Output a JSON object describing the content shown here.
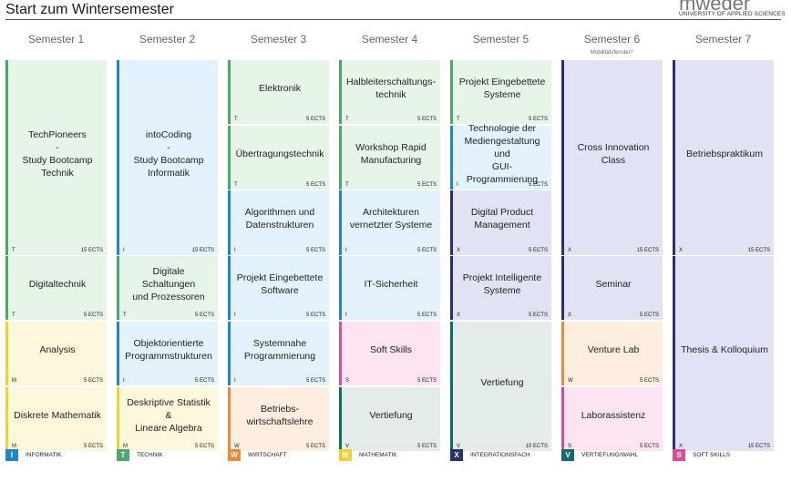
{
  "header": {
    "title": "Start zum Wintersemester",
    "logo_text": "mweder",
    "logo_sub": "UNIVERSITY OF APPLIED SCIENCES"
  },
  "colors": {
    "T": {
      "bar": "#4aa86b",
      "fill": "#e7f5e9"
    },
    "I": {
      "bar": "#1f86c8",
      "fill": "#e3f2fc"
    },
    "W": {
      "bar": "#ea8a3c",
      "fill": "#fdeee0"
    },
    "M": {
      "bar": "#f1d232",
      "fill": "#fdf8dc"
    },
    "X": {
      "bar": "#28306e",
      "fill": "#e1e2f3"
    },
    "V": {
      "bar": "#0e6e6c",
      "fill": "#e3ecea"
    },
    "S": {
      "bar": "#dc4b9a",
      "fill": "#fce4f3"
    }
  },
  "semesters": [
    {
      "label": "Semester 1",
      "note": ""
    },
    {
      "label": "Semester 2",
      "note": ""
    },
    {
      "label": "Semester 3",
      "note": ""
    },
    {
      "label": "Semester 4",
      "note": ""
    },
    {
      "label": "Semester 5",
      "note": ""
    },
    {
      "label": "Semester 6",
      "note": "Mobilitätsfenster¹⁾"
    },
    {
      "label": "Semester 7",
      "note": ""
    }
  ],
  "modules": [
    {
      "col": 0,
      "slot": 0,
      "span": 3,
      "title": "TechPioneers\n-\nStudy Bootcamp\nTechnik",
      "code": "T",
      "ects": "15 ECTS"
    },
    {
      "col": 0,
      "slot": 3,
      "span": 1,
      "title": "Digitaltechnik",
      "code": "T",
      "ects": "5 ECTS"
    },
    {
      "col": 0,
      "slot": 4,
      "span": 1,
      "title": "Analysis",
      "code": "M",
      "ects": "5 ECTS"
    },
    {
      "col": 0,
      "slot": 5,
      "span": 1,
      "title": "Diskrete Mathematik",
      "code": "M",
      "ects": "5 ECTS"
    },
    {
      "col": 1,
      "slot": 0,
      "span": 3,
      "title": "intoCoding\n-\nStudy Bootcamp\nInformatik",
      "code": "I",
      "ects": "15 ECTS"
    },
    {
      "col": 1,
      "slot": 3,
      "span": 1,
      "title": "Digitale Schaltungen\nund Prozessoren",
      "code": "T",
      "ects": "5 ECTS"
    },
    {
      "col": 1,
      "slot": 4,
      "span": 1,
      "title": "Objektorientierte\nProgrammstrukturen",
      "code": "I",
      "ects": "5 ECTS"
    },
    {
      "col": 1,
      "slot": 5,
      "span": 1,
      "title": "Deskriptive Statistik &\nLineare Algebra",
      "code": "M",
      "ects": "5 ECTS"
    },
    {
      "col": 2,
      "slot": 0,
      "span": 1,
      "title": "Elektronik",
      "code": "T",
      "ects": "5 ECTS"
    },
    {
      "col": 2,
      "slot": 1,
      "span": 1,
      "title": "Übertragungstechnik",
      "code": "T",
      "ects": "5 ECTS"
    },
    {
      "col": 2,
      "slot": 2,
      "span": 1,
      "title": "Algorithmen und\nDatenstrukturen",
      "code": "I",
      "ects": "5 ECTS"
    },
    {
      "col": 2,
      "slot": 3,
      "span": 1,
      "title": "Projekt Eingebettete\nSoftware",
      "code": "I",
      "ects": "5 ECTS"
    },
    {
      "col": 2,
      "slot": 4,
      "span": 1,
      "title": "Systemnahe\nProgrammierung",
      "code": "I",
      "ects": "5 ECTS"
    },
    {
      "col": 2,
      "slot": 5,
      "span": 1,
      "title": "Betriebs-\nwirtschaftslehre",
      "code": "W",
      "ects": "5 ECTS"
    },
    {
      "col": 3,
      "slot": 0,
      "span": 1,
      "title": "Halbleiterschaltungs-\ntechnik",
      "code": "T",
      "ects": "5 ECTS"
    },
    {
      "col": 3,
      "slot": 1,
      "span": 1,
      "title": "Workshop Rapid\nManufacturing",
      "code": "T",
      "ects": "5 ECTS"
    },
    {
      "col": 3,
      "slot": 2,
      "span": 1,
      "title": "Architekturen\nvernetzter Systeme",
      "code": "I",
      "ects": "5 ECTS"
    },
    {
      "col": 3,
      "slot": 3,
      "span": 1,
      "title": "IT-Sicherheit",
      "code": "I",
      "ects": "5 ECTS"
    },
    {
      "col": 3,
      "slot": 4,
      "span": 1,
      "title": "Soft Skills",
      "code": "S",
      "ects": "5 ECTS"
    },
    {
      "col": 3,
      "slot": 5,
      "span": 1,
      "title": "Vertiefung",
      "code": "V",
      "ects": "5 ECTS"
    },
    {
      "col": 4,
      "slot": 0,
      "span": 1,
      "title": "Projekt Eingebettete\nSysteme",
      "code": "T",
      "ects": "5 ECTS"
    },
    {
      "col": 4,
      "slot": 1,
      "span": 1,
      "title": "Technologie der\nMediengestaltung und\nGUI-Programmierung",
      "code": "I",
      "ects": "5 ECTS"
    },
    {
      "col": 4,
      "slot": 2,
      "span": 1,
      "title": "Digital Product\nManagement",
      "code": "X",
      "ects": "5 ECTS"
    },
    {
      "col": 4,
      "slot": 3,
      "span": 1,
      "title": "Projekt Intelligente\nSysteme",
      "code": "X",
      "ects": "5 ECTS"
    },
    {
      "col": 4,
      "slot": 4,
      "span": 2,
      "title": "Vertiefung",
      "code": "V",
      "ects": "10 ECTS"
    },
    {
      "col": 5,
      "slot": 0,
      "span": 3,
      "title": "Cross Innovation Class",
      "code": "X",
      "ects": "15 ECTS"
    },
    {
      "col": 5,
      "slot": 3,
      "span": 1,
      "title": "Seminar",
      "code": "X",
      "ects": "5 ECTS"
    },
    {
      "col": 5,
      "slot": 4,
      "span": 1,
      "title": "Venture Lab",
      "code": "W",
      "ects": "5 ECTS"
    },
    {
      "col": 5,
      "slot": 5,
      "span": 1,
      "title": "Laborassistenz",
      "code": "S",
      "ects": "5 ECTS"
    },
    {
      "col": 6,
      "slot": 0,
      "span": 3,
      "title": "Betriebspraktikum",
      "code": "X",
      "ects": "15 ECTS"
    },
    {
      "col": 6,
      "slot": 3,
      "span": 3,
      "title": "Thesis & Kolloquium",
      "code": "X",
      "ects": "15 ECTS"
    }
  ],
  "legend": [
    {
      "code": "I",
      "label": "INFORMATIK"
    },
    {
      "code": "T",
      "label": "TECHNIK"
    },
    {
      "code": "W",
      "label": "WIRTSCHAFT"
    },
    {
      "code": "M",
      "label": "MATHEMATIK"
    },
    {
      "code": "X",
      "label": "INTEGRATIONSFACH"
    },
    {
      "code": "V",
      "label": "VERTIEFUNG/WAHL"
    },
    {
      "code": "S",
      "label": "SOFT SKILLS"
    }
  ]
}
